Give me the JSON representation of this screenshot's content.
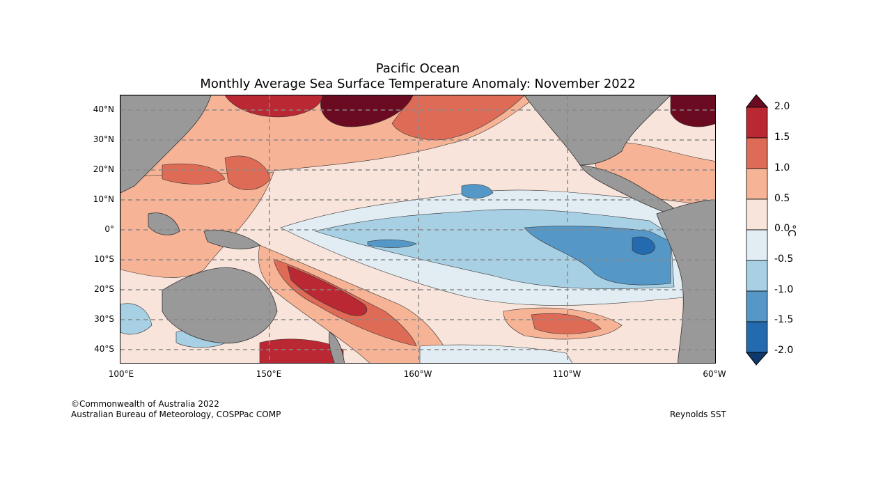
{
  "header": {
    "title": "Pacific Ocean",
    "subtitle": "Monthly Average Sea Surface Temperature Anomaly: November 2022"
  },
  "map": {
    "lat_labels": [
      "40°N",
      "30°N",
      "20°N",
      "10°N",
      "0°",
      "10°S",
      "20°S",
      "30°S",
      "40°S"
    ],
    "lon_labels": [
      "100°E",
      "150°E",
      "160°W",
      "110°W",
      "60°W"
    ],
    "land_color": "#999999"
  },
  "colorbar": {
    "unit": "°C",
    "tick_labels": [
      "2.0",
      "1.5",
      "1.0",
      "0.5",
      "0.0",
      "-0.5",
      "-1.0",
      "-1.5",
      "-2.0"
    ],
    "colors": [
      "#6a0b22",
      "#b92833",
      "#de6b56",
      "#f6b395",
      "#f8e4da",
      "#e1ecf3",
      "#a7d0e4",
      "#5598c8",
      "#246aae",
      "#0e3a6b"
    ]
  },
  "footer": {
    "copyright": "©Commonwealth of Australia 2022",
    "org": "Australian Bureau of Meteorology, COSPPac COMP",
    "source": "Reynolds SST"
  }
}
